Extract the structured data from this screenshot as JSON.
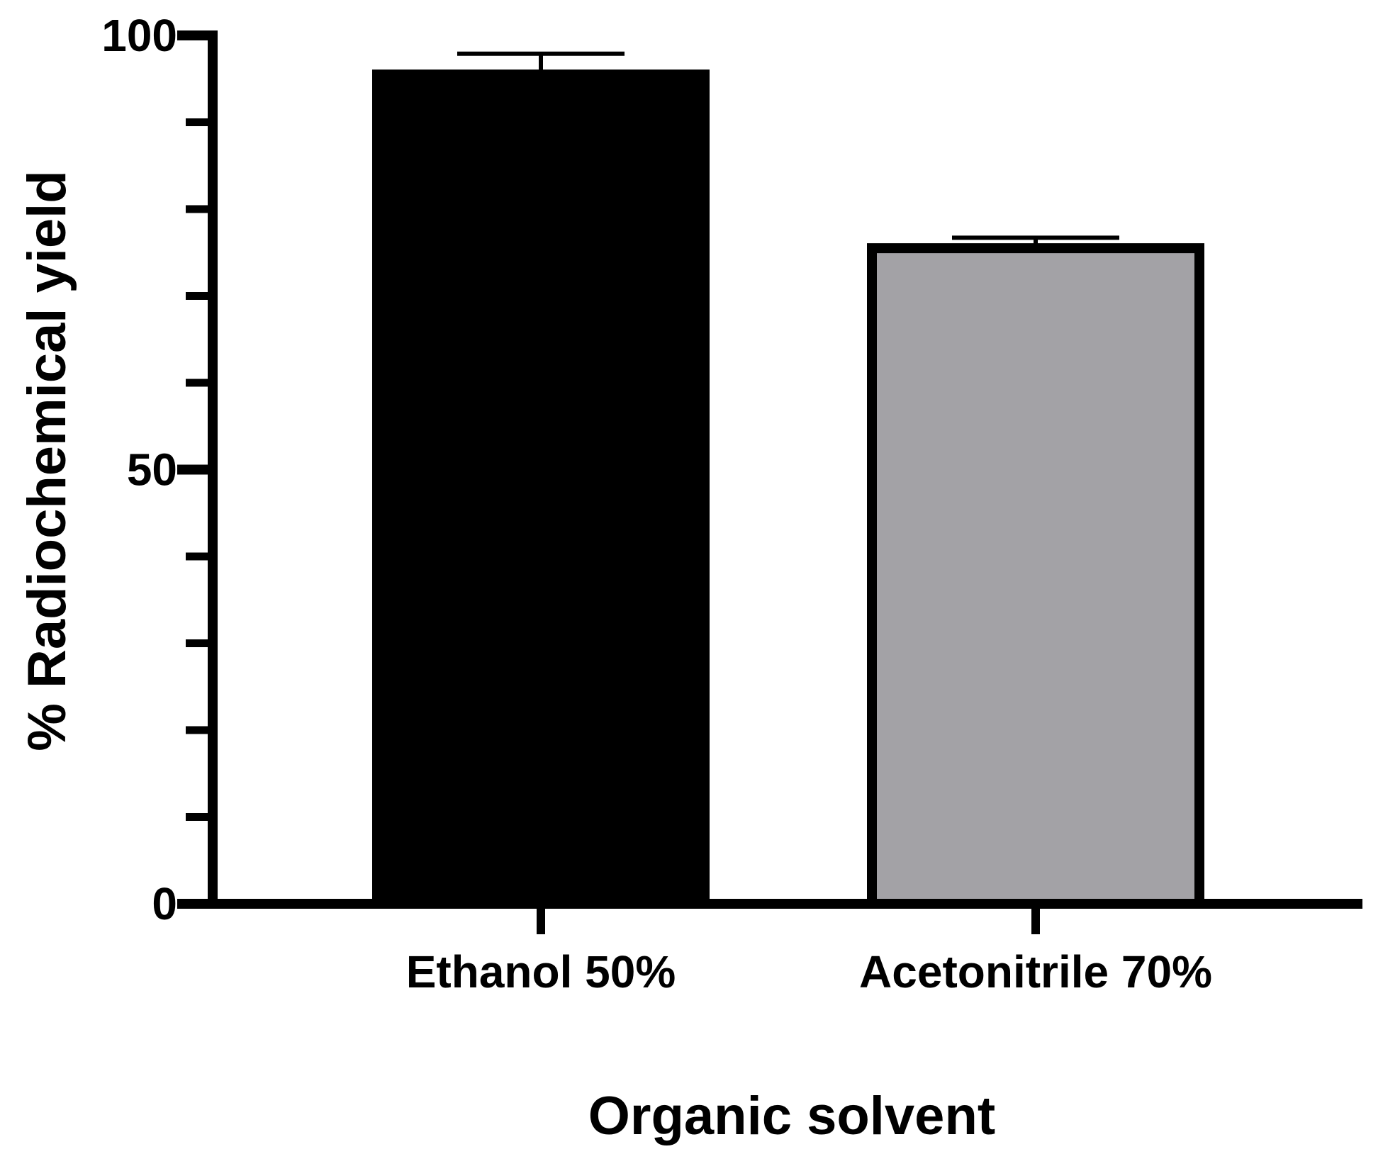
{
  "chart_data": {
    "type": "bar",
    "categories": [
      "Ethanol 50%",
      "Acetonitrile 70%"
    ],
    "values": [
      95.5,
      75.5
    ],
    "error_upper": [
      2.4,
      1.2
    ],
    "bar_colors": [
      "#000000",
      "#a3a2a6"
    ],
    "edge_color": "#000000",
    "xlabel": "Organic solvent",
    "ylabel": "% Radiochemical yield",
    "ylim": [
      0,
      100
    ],
    "major_ticks": [
      0,
      50,
      100
    ],
    "minor_step": 10,
    "grid": false,
    "legend": "none"
  }
}
